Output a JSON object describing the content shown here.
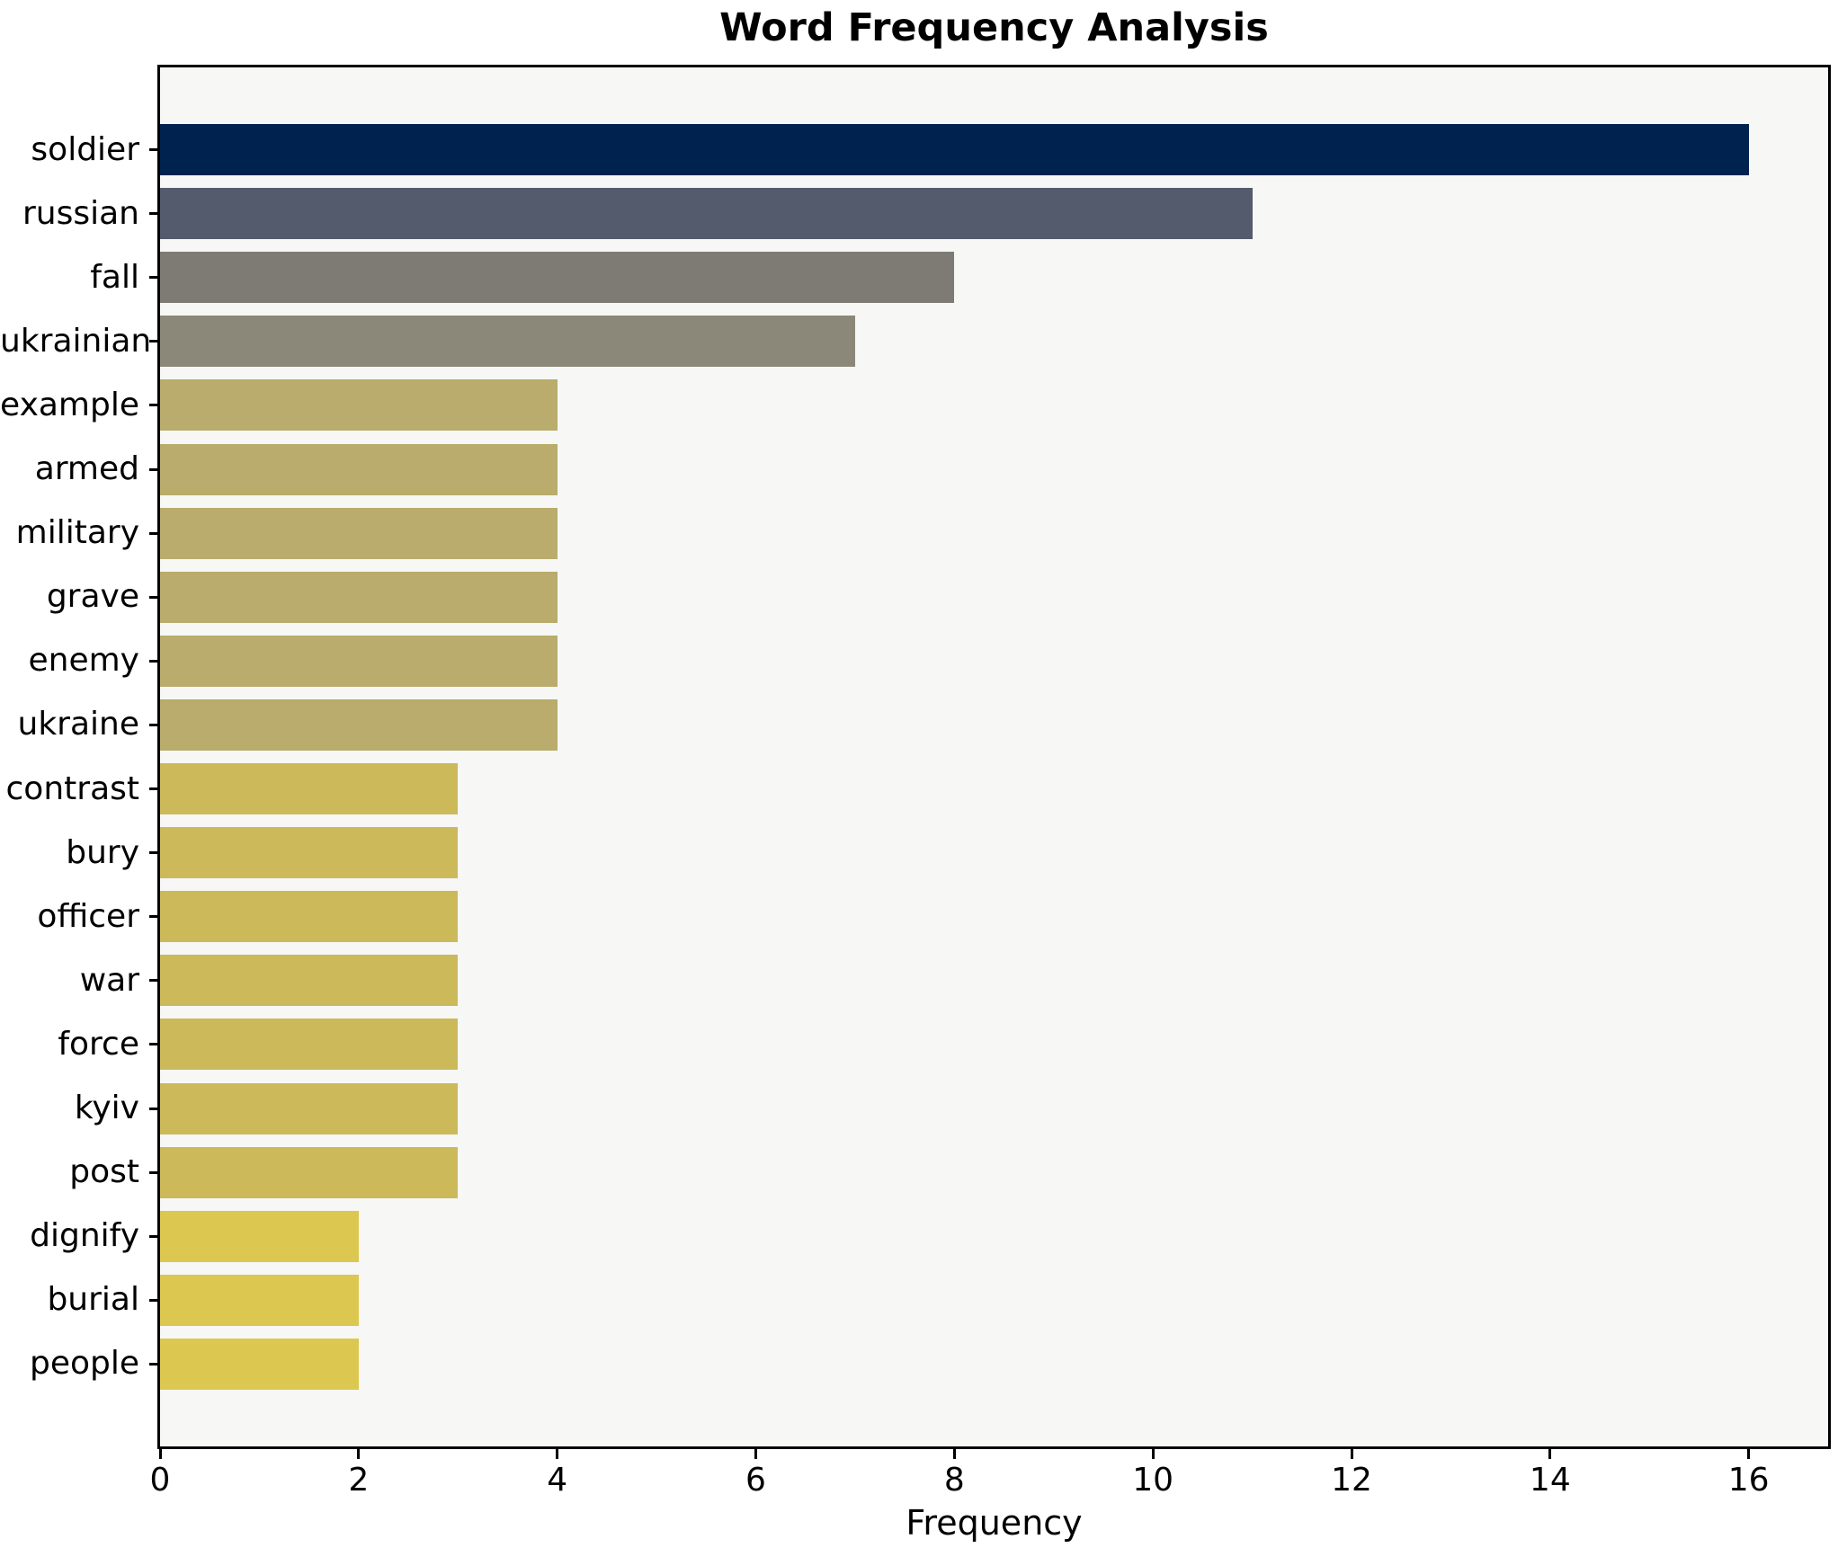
{
  "title": "Word Frequency Analysis",
  "chart_data": {
    "type": "bar",
    "orientation": "horizontal",
    "title": "Word Frequency Analysis",
    "xlabel": "Frequency",
    "ylabel": "",
    "categories": [
      "soldier",
      "russian",
      "fall",
      "ukrainian",
      "example",
      "armed",
      "military",
      "grave",
      "enemy",
      "ukraine",
      "contrast",
      "bury",
      "officer",
      "war",
      "force",
      "kyiv",
      "post",
      "dignify",
      "burial",
      "people"
    ],
    "values": [
      16,
      11,
      8,
      7,
      4,
      4,
      4,
      4,
      4,
      4,
      3,
      3,
      3,
      3,
      3,
      3,
      3,
      2,
      2,
      2
    ],
    "bar_colors": [
      "#00224e",
      "#545b6c",
      "#7d7b73",
      "#8b8779",
      "#b9ac6c",
      "#b9ac6c",
      "#b9ac6c",
      "#b9ac6c",
      "#b9ac6c",
      "#b9ac6c",
      "#ccb95a",
      "#ccb95a",
      "#ccb95a",
      "#ccb95a",
      "#ccb95a",
      "#ccb95a",
      "#ccb95a",
      "#dcc750",
      "#dcc750",
      "#dcc750"
    ],
    "xlim": [
      0,
      16.8
    ],
    "xticks": [
      0,
      2,
      4,
      6,
      8,
      10,
      12,
      14,
      16
    ],
    "grid": false,
    "legend": "none",
    "plot_background": "#f7f7f5",
    "axis_color": "#000000"
  }
}
